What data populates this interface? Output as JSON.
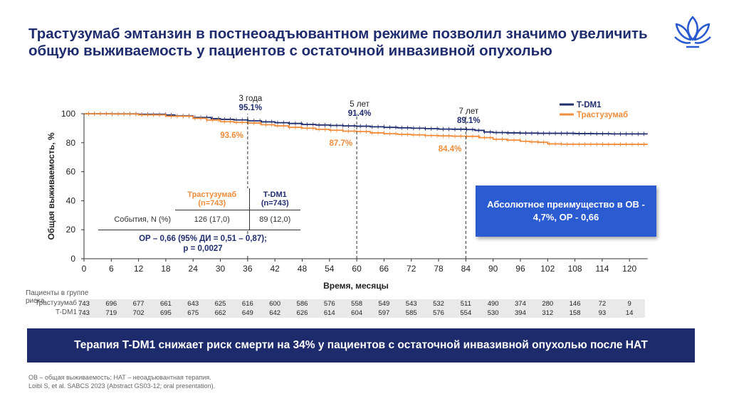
{
  "title": "Трастузумаб эмтанзин в постнеоадъювантном режиме позволил значимо увеличить общую выживаемость у пациентов с остаточной инвазивной опухолью",
  "colors": {
    "navy": "#1f2d6e",
    "orange": "#f08c3a",
    "box_blue": "#2a5bd1",
    "banner": "#1d2a6b"
  },
  "chart_data": {
    "type": "line",
    "title": "",
    "xlabel": "Время, месяцы",
    "ylabel": "Общая выживаемость, %",
    "xlim": [
      0,
      124
    ],
    "ylim": [
      0,
      100
    ],
    "x_ticks": [
      0,
      6,
      12,
      18,
      24,
      30,
      36,
      42,
      48,
      54,
      60,
      66,
      72,
      78,
      84,
      90,
      96,
      102,
      108,
      114,
      120
    ],
    "y_ticks": [
      0,
      20,
      40,
      60,
      80,
      100
    ],
    "legend": [
      "T-DM1",
      "Трастузумаб"
    ],
    "legend_position": "top-right",
    "series": [
      {
        "name": "T-DM1",
        "color": "#1f2d6e",
        "points": [
          [
            0,
            100
          ],
          [
            6,
            99.9
          ],
          [
            12,
            99.6
          ],
          [
            18,
            99.1
          ],
          [
            20,
            98.5
          ],
          [
            24,
            97.4
          ],
          [
            28,
            96.6
          ],
          [
            30,
            96.1
          ],
          [
            33,
            95.7
          ],
          [
            36,
            95.1
          ],
          [
            39,
            94.4
          ],
          [
            42,
            93.8
          ],
          [
            45,
            93.3
          ],
          [
            48,
            92.6
          ],
          [
            51,
            92.2
          ],
          [
            54,
            91.9
          ],
          [
            57,
            91.6
          ],
          [
            60,
            91.4
          ],
          [
            63,
            91.0
          ],
          [
            66,
            90.6
          ],
          [
            69,
            90.3
          ],
          [
            72,
            90.0
          ],
          [
            75,
            89.7
          ],
          [
            78,
            89.4
          ],
          [
            81,
            89.3
          ],
          [
            84,
            89.1
          ],
          [
            86,
            88.5
          ],
          [
            88,
            87.4
          ],
          [
            90,
            87.0
          ],
          [
            93,
            86.8
          ],
          [
            96,
            86.6
          ],
          [
            100,
            86.5
          ],
          [
            104,
            86.5
          ],
          [
            108,
            86.3
          ],
          [
            112,
            86.2
          ],
          [
            116,
            86.1
          ],
          [
            120,
            86.1
          ],
          [
            124,
            86.1
          ]
        ]
      },
      {
        "name": "Трастузумаб",
        "color": "#f08c3a",
        "points": [
          [
            0,
            100
          ],
          [
            6,
            99.8
          ],
          [
            12,
            99.2
          ],
          [
            18,
            98.3
          ],
          [
            24,
            96.8
          ],
          [
            27,
            95.6
          ],
          [
            30,
            94.5
          ],
          [
            33,
            94.0
          ],
          [
            36,
            93.6
          ],
          [
            39,
            92.4
          ],
          [
            42,
            91.6
          ],
          [
            45,
            90.6
          ],
          [
            48,
            90.0
          ],
          [
            51,
            89.2
          ],
          [
            54,
            88.6
          ],
          [
            57,
            88.0
          ],
          [
            60,
            87.7
          ],
          [
            63,
            86.8
          ],
          [
            66,
            86.2
          ],
          [
            69,
            85.8
          ],
          [
            72,
            85.4
          ],
          [
            75,
            85.0
          ],
          [
            78,
            84.7
          ],
          [
            81,
            84.5
          ],
          [
            84,
            84.4
          ],
          [
            87,
            83.5
          ],
          [
            90,
            82.4
          ],
          [
            93,
            81.8
          ],
          [
            96,
            81.0
          ],
          [
            98,
            80.6
          ],
          [
            100,
            80.3
          ],
          [
            102,
            79.2
          ],
          [
            105,
            79.0
          ],
          [
            108,
            79.0
          ],
          [
            111,
            79.0
          ],
          [
            114,
            78.9
          ],
          [
            118,
            78.9
          ],
          [
            124,
            78.9
          ]
        ]
      }
    ],
    "annotations": [
      {
        "x": 36,
        "period": "3 года",
        "tdm1": "95.1%",
        "trast": "93.6%"
      },
      {
        "x": 60,
        "period": "5 лет",
        "tdm1": "91.4%",
        "trast": "87.7%"
      },
      {
        "x": 84,
        "period": "7 лет",
        "tdm1": "89.1%",
        "trast": "84.4%"
      }
    ],
    "events_table": {
      "col1_header": [
        "Трастузумаб",
        "(n=743)"
      ],
      "col2_header": [
        "T-DM1",
        "(n=743)"
      ],
      "row_label": "События, N (%)",
      "col1_value": "126 (17,0)",
      "col2_value": "89 (12,0)"
    },
    "hr_stats": [
      "ОР – 0,66 (95% ДИ = 0,51 – 0,87);",
      "p = 0,0027"
    ],
    "risk_table": {
      "header": [
        "Пациенты в группе",
        "риска"
      ],
      "rows": [
        {
          "label": "Трастузумаб",
          "values": [
            "743",
            "696",
            "677",
            "661",
            "643",
            "625",
            "616",
            "600",
            "586",
            "576",
            "558",
            "549",
            "543",
            "532",
            "511",
            "490",
            "374",
            "280",
            "146",
            "72",
            "9"
          ]
        },
        {
          "label": "T-DM1",
          "values": [
            "743",
            "719",
            "702",
            "695",
            "675",
            "662",
            "649",
            "642",
            "626",
            "614",
            "604",
            "597",
            "585",
            "576",
            "554",
            "530",
            "394",
            "312",
            "158",
            "93",
            "14"
          ]
        }
      ]
    }
  },
  "benefit_box": "Абсолютное преимущество в ОВ - 4,7%, ОР - 0,66",
  "banner": "Терапия T-DM1 снижает риск смерти на 34% у пациентов с остаточной инвазивной опухолью после НАТ",
  "footnotes": [
    "ОВ – общая выживаемость; НАТ – неоадъювантная терапия.",
    "Loibl S, et al. SABCS 2023 (Abstract GS03-12; oral presentation)."
  ]
}
